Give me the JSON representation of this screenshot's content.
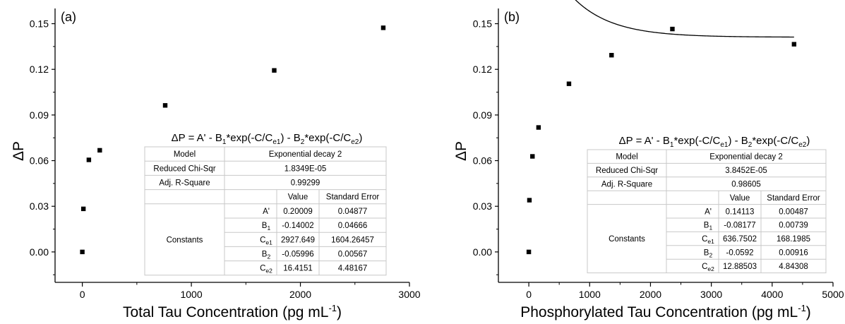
{
  "chart_data": [
    {
      "type": "scatter",
      "panel_label": "(a)",
      "xlabel": "Total Tau Concentration (pg mL",
      "xlabel_sup": "-1",
      "xlabel_close": ")",
      "ylabel": "ΔP",
      "xlim": [
        -250,
        3000
      ],
      "ylim": [
        -0.02,
        0.16
      ],
      "xticks": [
        0,
        1000,
        2000,
        3000
      ],
      "yticks": [
        0.0,
        0.03,
        0.06,
        0.09,
        0.12,
        0.15
      ],
      "ytick_labels": [
        "0.00",
        "0.03",
        "0.06",
        "0.09",
        "0.12",
        "0.15"
      ],
      "series": [
        {
          "marker": "square",
          "points": [
            [
              0,
              0.0
            ],
            [
              10,
              0.0283
            ],
            [
              60,
              0.0605
            ],
            [
              160,
              0.0668
            ],
            [
              760,
              0.0963
            ],
            [
              1760,
              0.1193
            ],
            [
              2760,
              0.1473
            ]
          ]
        }
      ],
      "fit": {
        "A": 0.20009,
        "B1": -0.14002,
        "Ce1": 2927.649,
        "B2": -0.05996,
        "Ce2": 16.4151,
        "x_start": -5,
        "x_end": 2760
      },
      "equation": {
        "p1": "ΔP = A' - B",
        "s1": "1",
        "p2": "*exp(-C/C",
        "s2": "e1",
        "p3": ") - B",
        "s4": "2",
        "p4": "*exp(-C/C",
        "s5": "e2",
        "p5": ")"
      },
      "table": {
        "model_label": "Model",
        "model_value": "Exponential decay 2",
        "chisq_label": "Reduced Chi-Sqr",
        "chisq_value": "1.8349E-05",
        "r2_label": "Adj. R-Square",
        "r2_value": "0.99299",
        "value_header": "Value",
        "error_header": "Standard Error",
        "constants_label": "Constants",
        "params": [
          {
            "name": "A'",
            "sub": "",
            "value": "0.20009",
            "error": "0.04877"
          },
          {
            "name": "B",
            "sub": "1",
            "value": "-0.14002",
            "error": "0.04666"
          },
          {
            "name": "C",
            "sub": "e1",
            "value": "2927.649",
            "error": "1604.26457"
          },
          {
            "name": "B",
            "sub": "2",
            "value": "-0.05996",
            "error": "0.00567"
          },
          {
            "name": "C",
            "sub": "e2",
            "value": "16.4151",
            "error": "4.48167"
          }
        ]
      }
    },
    {
      "type": "scatter",
      "panel_label": "(b)",
      "xlabel": "Phosphorylated Tau Concentration (pg mL",
      "xlabel_sup": "-1",
      "xlabel_close": ")",
      "ylabel": "ΔP",
      "xlim": [
        -500,
        5000
      ],
      "ylim": [
        -0.02,
        0.16
      ],
      "xticks": [
        0,
        1000,
        2000,
        3000,
        4000,
        5000
      ],
      "yticks": [
        0.0,
        0.03,
        0.06,
        0.09,
        0.12,
        0.15
      ],
      "ytick_labels": [
        "0.00",
        "0.03",
        "0.06",
        "0.09",
        "0.12",
        "0.15"
      ],
      "series": [
        {
          "marker": "square",
          "points": [
            [
              0,
              0.0
            ],
            [
              10,
              0.034
            ],
            [
              60,
              0.0628
            ],
            [
              160,
              0.0818
            ],
            [
              660,
              0.1105
            ],
            [
              1360,
              0.1293
            ],
            [
              2360,
              0.1465
            ],
            [
              4360,
              0.1365
            ]
          ]
        }
      ],
      "fit": {
        "A": 0.14113,
        "B1": -0.08177,
        "Ce1": 636.7502,
        "B2": -0.0592,
        "Ce2": 12.88503,
        "x_start": -5,
        "x_end": 4360
      },
      "equation": {
        "p1": "ΔP = A' - B",
        "s1": "1",
        "p2": "*exp(-C/C",
        "s2": "e1",
        "p3": ") - B",
        "s4": "2",
        "p4": "*exp(-C/C",
        "s5": "e2",
        "p5": ")"
      },
      "table": {
        "model_label": "Model",
        "model_value": "Exponential decay 2",
        "chisq_label": "Reduced Chi-Sqr",
        "chisq_value": "3.8452E-05",
        "r2_label": "Adj. R-Square",
        "r2_value": "0.98605",
        "value_header": "Value",
        "error_header": "Standard Error",
        "constants_label": "Constants",
        "params": [
          {
            "name": "A'",
            "sub": "",
            "value": "0.14113",
            "error": "0.00487"
          },
          {
            "name": "B",
            "sub": "1",
            "value": "-0.08177",
            "error": "0.00739"
          },
          {
            "name": "C",
            "sub": "e1",
            "value": "636.7502",
            "error": "168.1985"
          },
          {
            "name": "B",
            "sub": "2",
            "value": "-0.0592",
            "error": "0.00916"
          },
          {
            "name": "C",
            "sub": "e2",
            "value": "12.88503",
            "error": "4.84308"
          }
        ]
      }
    }
  ]
}
